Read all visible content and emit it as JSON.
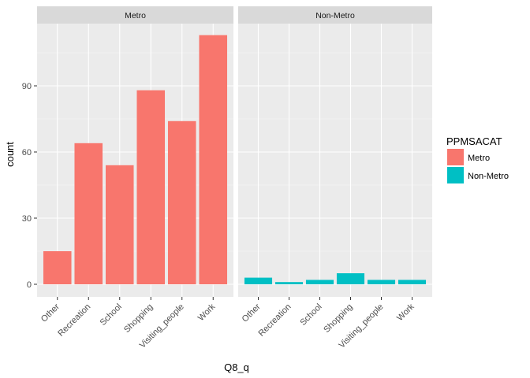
{
  "chart_data": {
    "type": "bar",
    "facet_by": "PPMSACAT",
    "xlabel": "Q8_q",
    "ylabel": "count",
    "categories": [
      "Other",
      "Recreation",
      "School",
      "Shopping",
      "Visiting_people",
      "Work"
    ],
    "ylim": [
      0,
      118
    ],
    "yticks": [
      0,
      30,
      60,
      90
    ],
    "grid": true,
    "legend": {
      "title": "PPMSACAT",
      "position": "right",
      "entries": [
        "Metro",
        "Non-Metro"
      ]
    },
    "colors": {
      "Metro": "#F8766D",
      "Non-Metro": "#00BFC4"
    },
    "panels": [
      {
        "name": "Metro",
        "values": [
          15,
          64,
          54,
          88,
          74,
          113
        ]
      },
      {
        "name": "Non-Metro",
        "values": [
          3,
          1,
          2,
          5,
          2,
          2
        ]
      }
    ]
  }
}
